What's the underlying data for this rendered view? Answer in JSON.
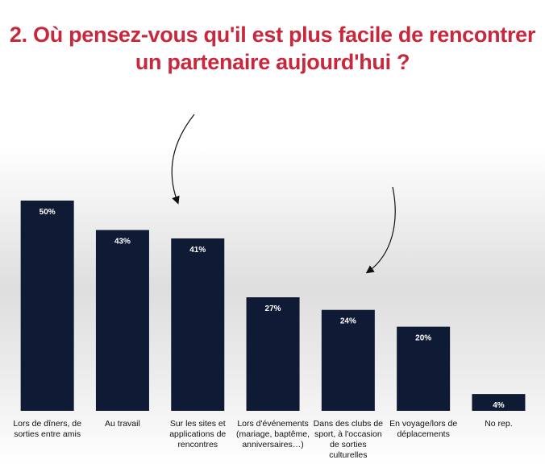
{
  "title": {
    "line1": "2.  Où pensez-vous qu'il est plus facile de rencontrer",
    "line2": "un partenaire aujourd'hui ?"
  },
  "colors": {
    "title": "#c8283c",
    "bar": "#0f1a35",
    "value_label": "#ffffff",
    "arrow": "#111111"
  },
  "chart_data": {
    "type": "bar",
    "title": "2.  Où pensez-vous qu'il est plus facile de rencontrer un partenaire aujourd'hui ?",
    "categories": [
      [
        "Lors de dîners, de",
        "sorties entre amis"
      ],
      [
        "Au travail"
      ],
      [
        "Sur les sites et",
        "applications de",
        "rencontres"
      ],
      [
        "Lors d'événements",
        "(mariage, baptême,",
        "anniversaires…)"
      ],
      [
        "Dans des clubs de",
        "sport, à l'occasion",
        "de sorties",
        "culturelles"
      ],
      [
        "En voyage/lors de",
        "déplacements"
      ],
      [
        "No rep."
      ]
    ],
    "values": [
      50,
      43,
      41,
      27,
      24,
      20,
      4
    ],
    "value_labels": [
      "50%",
      "43%",
      "41%",
      "27%",
      "24%",
      "20%",
      "4%"
    ],
    "unit": "%",
    "ylim": [
      0,
      50
    ],
    "grid": false,
    "legend": "none",
    "annotations": [
      "arrow pointing to Sur les sites et applications de rencontres",
      "arrow pointing to Dans des clubs de sport, à l'occasion de sorties culturelles"
    ]
  }
}
